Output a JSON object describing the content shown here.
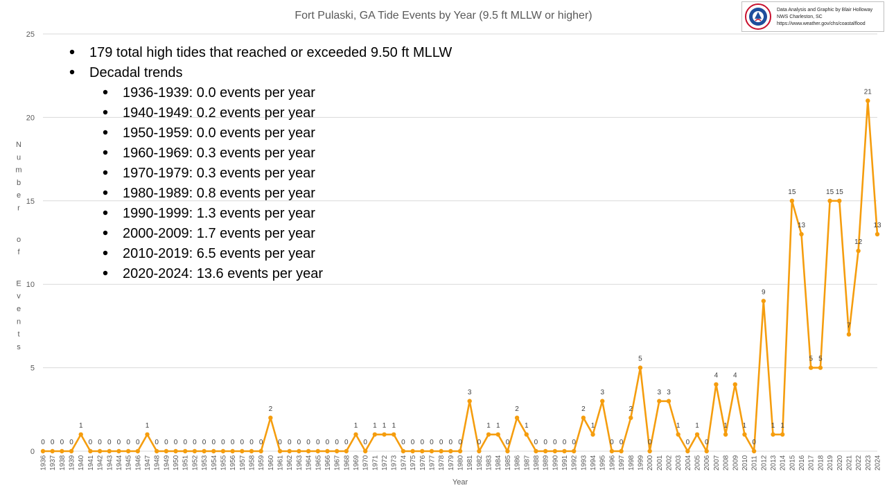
{
  "chart_data": {
    "type": "line",
    "title": "Fort Pulaski, GA Tide Events by Year (9.5 ft MLLW or higher)",
    "xlabel": "Year",
    "ylabel": "Number of Events",
    "ylim": [
      0,
      25
    ],
    "yticks": [
      "0",
      "5",
      "10",
      "15",
      "20",
      "25"
    ],
    "grid": true,
    "series_color": "#f59d0e",
    "categories": [
      "1936",
      "1937",
      "1938",
      "1939",
      "1940",
      "1941",
      "1942",
      "1943",
      "1944",
      "1945",
      "1946",
      "1947",
      "1948",
      "1949",
      "1950",
      "1951",
      "1952",
      "1953",
      "1954",
      "1955",
      "1956",
      "1957",
      "1958",
      "1959",
      "1960",
      "1961",
      "1962",
      "1963",
      "1964",
      "1965",
      "1966",
      "1967",
      "1968",
      "1969",
      "1970",
      "1971",
      "1972",
      "1973",
      "1974",
      "1975",
      "1976",
      "1977",
      "1978",
      "1979",
      "1980",
      "1981",
      "1982",
      "1983",
      "1984",
      "1985",
      "1986",
      "1987",
      "1988",
      "1989",
      "1990",
      "1991",
      "1992",
      "1993",
      "1994",
      "1995",
      "1996",
      "1997",
      "1998",
      "1999",
      "2000",
      "2001",
      "2002",
      "2003",
      "2004",
      "2005",
      "2006",
      "2007",
      "2008",
      "2009",
      "2010",
      "2011",
      "2012",
      "2013",
      "2014",
      "2015",
      "2016",
      "2017",
      "2018",
      "2019",
      "2020",
      "2021",
      "2022",
      "2023",
      "2024"
    ],
    "values": [
      0,
      0,
      0,
      0,
      1,
      0,
      0,
      0,
      0,
      0,
      0,
      1,
      0,
      0,
      0,
      0,
      0,
      0,
      0,
      0,
      0,
      0,
      0,
      0,
      2,
      0,
      0,
      0,
      0,
      0,
      0,
      0,
      0,
      1,
      0,
      1,
      1,
      1,
      0,
      0,
      0,
      0,
      0,
      0,
      0,
      3,
      0,
      1,
      1,
      0,
      2,
      1,
      0,
      0,
      0,
      0,
      0,
      2,
      1,
      3,
      0,
      0,
      2,
      5,
      0,
      3,
      3,
      1,
      0,
      1,
      0,
      4,
      1,
      4,
      1,
      0,
      9,
      1,
      1,
      15,
      13,
      5,
      5,
      15,
      15,
      7,
      12,
      21,
      13
    ]
  },
  "notes": {
    "total": "179 total high tides that reached or exceeded 9.50 ft MLLW",
    "heading": "Decadal trends",
    "decades": [
      "1936-1939: 0.0 events per year",
      "1940-1949: 0.2 events per year",
      "1950-1959: 0.0 events per year",
      "1960-1969: 0.3 events per year",
      "1970-1979: 0.3 events per year",
      "1980-1989: 0.8 events per year",
      "1990-1999: 1.3 events per year",
      "2000-2009: 1.7 events per year",
      "2010-2019: 6.5 events per year",
      "2020-2024: 13.6 events per year"
    ]
  },
  "credit": {
    "line1": "Data Analysis and Graphic by Blair Holloway",
    "line2": "NWS Charleston, SC",
    "line3": "https://www.weather.gov/chs/coastalflood",
    "logo_icon": "nws-logo-icon"
  }
}
